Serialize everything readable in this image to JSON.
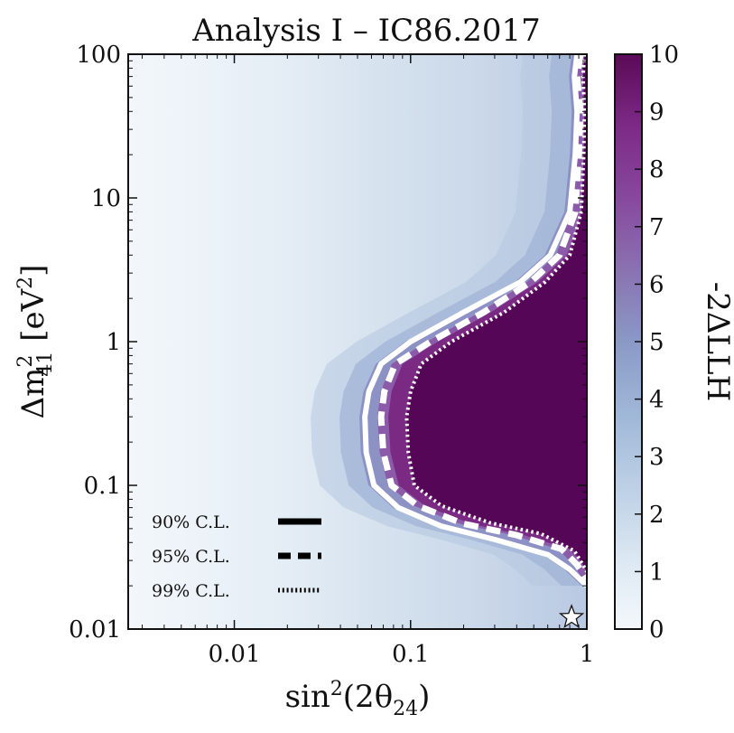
{
  "chart_data": {
    "type": "heatmap",
    "title": "Analysis I – IC86.2017",
    "xlabel": "sin²(2θ₂₄)",
    "xlabel_parts": {
      "base": "sin",
      "sup": "2",
      "mid": "(2θ",
      "sub": "24",
      "end": ")"
    },
    "ylabel": "Δm²₄₁ [eV²]",
    "ylabel_parts": {
      "base": "Δm",
      "sup": "2",
      "sub": "41",
      "unit": " [eV",
      "unit_sup": "2",
      "unit_end": "]"
    },
    "x_scale": "log",
    "y_scale": "log",
    "xlim": [
      0.0025,
      1
    ],
    "ylim": [
      0.01,
      100
    ],
    "x_ticks": [
      {
        "value": 0.01,
        "label": "0.01"
      },
      {
        "value": 0.1,
        "label": "0.1"
      },
      {
        "value": 1,
        "label": "1"
      }
    ],
    "y_ticks": [
      {
        "value": 0.01,
        "label": "0.01"
      },
      {
        "value": 0.1,
        "label": "0.1"
      },
      {
        "value": 1,
        "label": "1"
      },
      {
        "value": 10,
        "label": "10"
      },
      {
        "value": 100,
        "label": "100"
      }
    ],
    "colorbar": {
      "label": "-2ΔLLH",
      "range": [
        0,
        10
      ],
      "ticks": [
        "0",
        "1",
        "2",
        "3",
        "4",
        "5",
        "6",
        "7",
        "8",
        "9",
        "10"
      ],
      "colors": [
        "#f4f8fc",
        "#dbe7f2",
        "#bccfe5",
        "#9fb7d8",
        "#8a99c6",
        "#8a72b1",
        "#87489d",
        "#7d2a86",
        "#5a0a56"
      ]
    },
    "contours": [
      {
        "name": "90% C.L.",
        "style": "solid",
        "points": [
          [
            0.88,
            100
          ],
          [
            0.85,
            70
          ],
          [
            0.88,
            40
          ],
          [
            0.86,
            20
          ],
          [
            0.8,
            8
          ],
          [
            0.62,
            4
          ],
          [
            0.42,
            2.6
          ],
          [
            0.2,
            1.6
          ],
          [
            0.1,
            1
          ],
          [
            0.068,
            0.7
          ],
          [
            0.058,
            0.45
          ],
          [
            0.055,
            0.3
          ],
          [
            0.056,
            0.17
          ],
          [
            0.062,
            0.1
          ],
          [
            0.085,
            0.07
          ],
          [
            0.15,
            0.052
          ],
          [
            0.3,
            0.042
          ],
          [
            0.6,
            0.033
          ],
          [
            0.8,
            0.026
          ],
          [
            1,
            0.02
          ]
        ]
      },
      {
        "name": "95% C.L.",
        "style": "dashed",
        "points": [
          [
            0.92,
            100
          ],
          [
            0.88,
            70
          ],
          [
            0.92,
            40
          ],
          [
            0.9,
            20
          ],
          [
            0.86,
            8
          ],
          [
            0.7,
            4
          ],
          [
            0.48,
            2.6
          ],
          [
            0.26,
            1.6
          ],
          [
            0.13,
            1
          ],
          [
            0.082,
            0.7
          ],
          [
            0.071,
            0.45
          ],
          [
            0.068,
            0.3
          ],
          [
            0.07,
            0.17
          ],
          [
            0.078,
            0.1
          ],
          [
            0.11,
            0.072
          ],
          [
            0.2,
            0.054
          ],
          [
            0.4,
            0.045
          ],
          [
            0.72,
            0.036
          ],
          [
            0.88,
            0.028
          ],
          [
            1,
            0.022
          ]
        ]
      },
      {
        "name": "99% C.L.",
        "style": "dotted",
        "points": [
          [
            0.97,
            100
          ],
          [
            0.95,
            70
          ],
          [
            0.97,
            40
          ],
          [
            0.96,
            20
          ],
          [
            0.93,
            8
          ],
          [
            0.8,
            4
          ],
          [
            0.58,
            2.6
          ],
          [
            0.34,
            1.6
          ],
          [
            0.17,
            1
          ],
          [
            0.115,
            0.7
          ],
          [
            0.1,
            0.45
          ],
          [
            0.095,
            0.3
          ],
          [
            0.097,
            0.17
          ],
          [
            0.105,
            0.1
          ],
          [
            0.15,
            0.072
          ],
          [
            0.28,
            0.055
          ],
          [
            0.55,
            0.046
          ],
          [
            0.85,
            0.035
          ],
          [
            0.95,
            0.028
          ],
          [
            1,
            0.025
          ]
        ]
      }
    ],
    "legend": {
      "position": "lower-left",
      "entries": [
        {
          "label": "90% C.L.",
          "style": "solid"
        },
        {
          "label": "95% C.L.",
          "style": "dashed"
        },
        {
          "label": "99% C.L.",
          "style": "dotted"
        }
      ]
    },
    "best_fit": {
      "x": 0.9,
      "y": 0.01,
      "marker": "star"
    }
  }
}
